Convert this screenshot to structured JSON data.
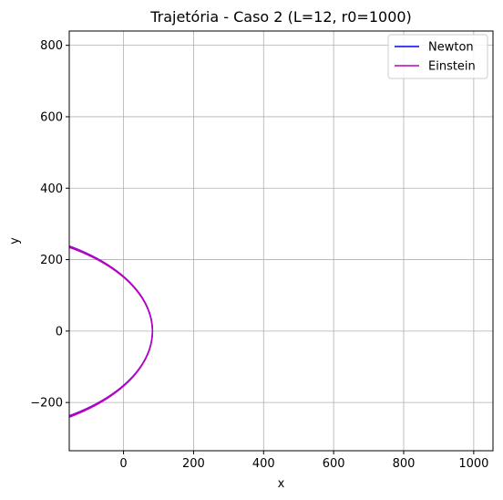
{
  "chart_data": {
    "type": "line",
    "title": "Trajetória - Caso 2 (L=12, r0=1000)",
    "xlabel": "x",
    "ylabel": "y",
    "xlim": [
      -155,
      1055
    ],
    "ylim": [
      -335,
      840
    ],
    "xticks": [
      0,
      200,
      400,
      600,
      800,
      1000
    ],
    "yticks": [
      -200,
      0,
      200,
      400,
      600,
      800
    ],
    "grid": true,
    "legend": "top-right",
    "series": [
      {
        "name": "Newton",
        "color": "#0000ff",
        "model": "ellipse",
        "params": {
          "p": 152.4,
          "e": 0.847,
          "theta0": 0.0,
          "turns": 7,
          "jitter": 6
        }
      },
      {
        "name": "Einstein",
        "color": "#bf00bf",
        "model": "precessing_ellipse",
        "params": {
          "p": 152.4,
          "e": 0.847,
          "theta0": 0.0,
          "precession_deg_per_orbit": 7.0,
          "orbits": 7,
          "end_angle_deg": 75.0
        }
      }
    ]
  }
}
